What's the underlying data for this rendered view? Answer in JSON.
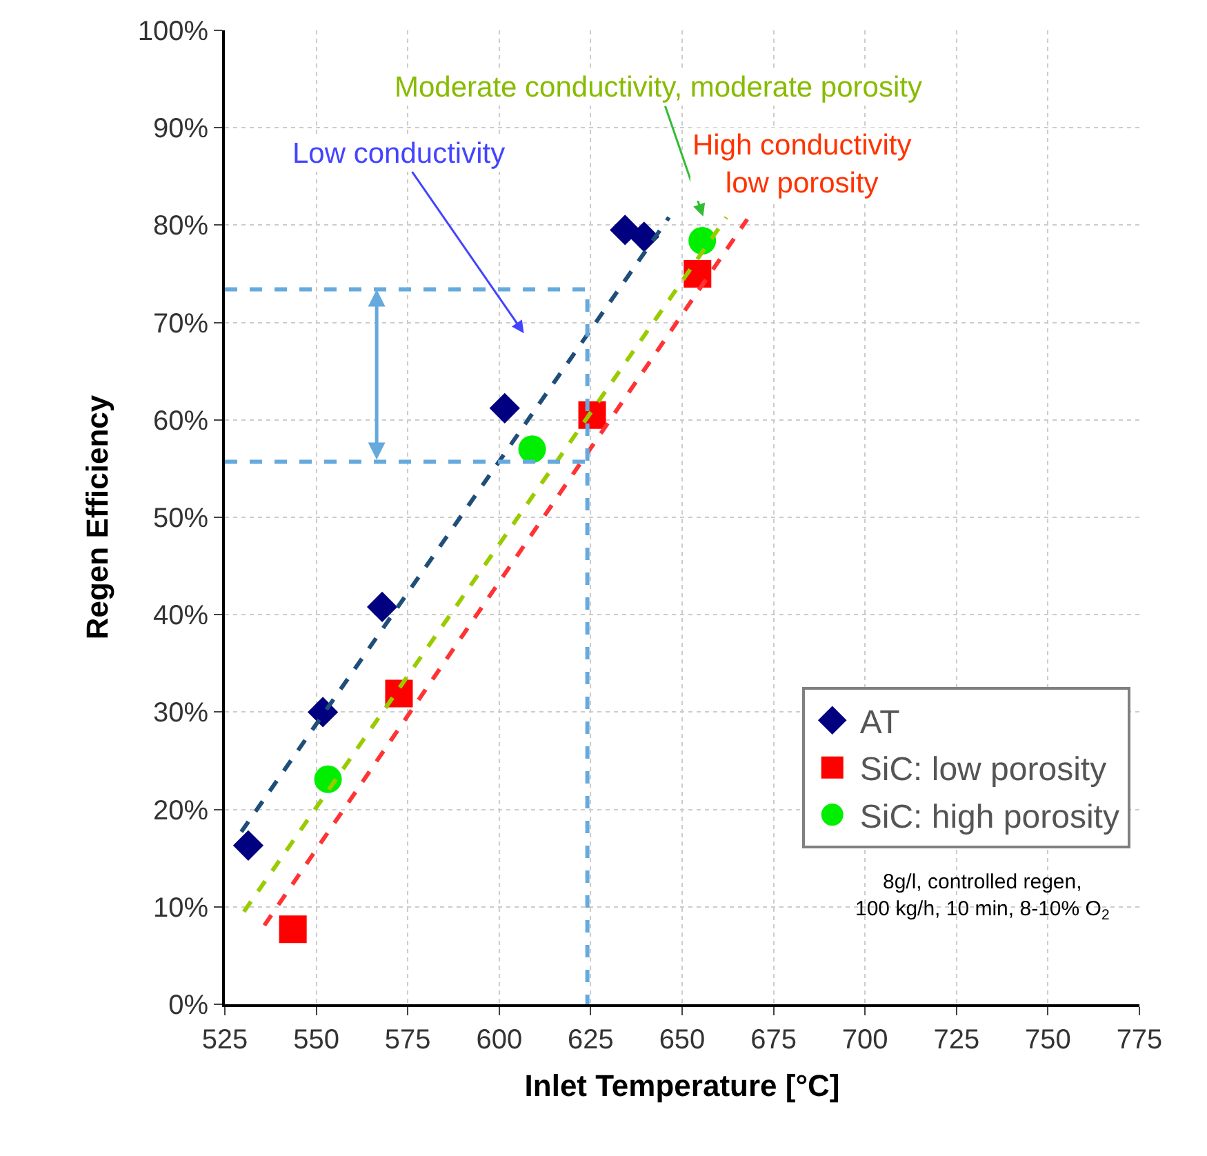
{
  "chart_data": {
    "type": "scatter",
    "xlabel": "Inlet Temperature [°C]",
    "ylabel": "Regen Efficiency",
    "xlim": [
      525,
      775
    ],
    "xticks": [
      525,
      550,
      575,
      600,
      625,
      650,
      675,
      700,
      725,
      750,
      775
    ],
    "ylim": [
      0,
      100
    ],
    "yticks": [
      {
        "value": 0,
        "label": "0%"
      },
      {
        "value": 10,
        "label": "10%"
      },
      {
        "value": 20,
        "label": "20%"
      },
      {
        "value": 30,
        "label": "30%"
      },
      {
        "value": 40,
        "label": "40%"
      },
      {
        "value": 50,
        "label": "50%"
      },
      {
        "value": 60,
        "label": "60%"
      },
      {
        "value": 70,
        "label": "70%"
      },
      {
        "value": 80,
        "label": "80%"
      },
      {
        "value": 90,
        "label": "90%"
      },
      {
        "value": 100,
        "label": "100%"
      }
    ],
    "grid": true,
    "legend": "bottom right",
    "series": [
      {
        "name": "AT",
        "marker": "diamond",
        "color": "#000080",
        "x": [
          531.4,
          551.8,
          568,
          601.5,
          634.4,
          639.6
        ],
        "values": [
          16.3,
          30,
          40.8,
          61.2,
          79.5,
          78.8
        ]
      },
      {
        "name": "SiC: low porosity",
        "marker": "square",
        "color": "#ff0000",
        "x": [
          543.6,
          572.6,
          625.4,
          654.2
        ],
        "values": [
          7.7,
          31.9,
          60.5,
          75
        ]
      },
      {
        "name": "SiC: high porosity",
        "marker": "circle",
        "color": "#00ee00",
        "x": [
          553.2,
          609,
          655.5
        ],
        "values": [
          23.1,
          57,
          78.4
        ]
      },
      {
        "type": "line",
        "line_style": "dashed",
        "color": "#1f4e79",
        "x": [
          529.5,
          646.4
        ],
        "values": [
          17.7,
          80.8
        ]
      },
      {
        "type": "line",
        "line_style": "dashed",
        "color": "#99cc00",
        "x": [
          530.2,
          662.1
        ],
        "values": [
          9.5,
          80.8
        ]
      },
      {
        "type": "line",
        "line_style": "dashed",
        "color": "#ff3333",
        "x": [
          535.8,
          667.8
        ],
        "values": [
          8.1,
          80.6
        ]
      },
      {
        "type": "line",
        "line_style": "dashed",
        "color": "#66aadd",
        "x": [
          525,
          624.1,
          624.1
        ],
        "values": [
          73.4,
          73.4,
          0
        ]
      },
      {
        "type": "line",
        "line_style": "dashed",
        "color": "#66aadd",
        "x": [
          525,
          624.1
        ],
        "values": [
          55.7,
          55.7
        ]
      }
    ],
    "annotations": [
      "Low conductivity",
      "Moderate conductivity, moderate porosity",
      {
        "text": "High conductivity\nlow porosity",
        "x": 667.8,
        "y": 80.6
      },
      "8g/l, controlled regen,\n100 kg/h, 10 min, 8-10% O$_{2}$"
    ]
  }
}
